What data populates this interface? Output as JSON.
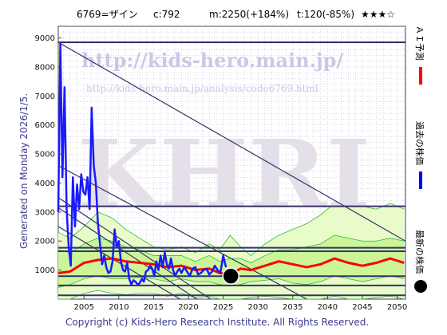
{
  "header": {
    "ticker": "6769=ザイン",
    "current": "c:792",
    "median": "m:2250(+184%)",
    "target": "t:120(-85%)",
    "stars": "★★★☆"
  },
  "watermarks": {
    "url": "http://kids-hero.main.jp/",
    "page_url": "http://kids-hero.main.jp/analysis/code6769.html",
    "logo": "KHRI"
  },
  "side_text": "Generated on Monday 2026/1/5.",
  "copyright": "Copyright (c) Kids-Hero Research Institute. All Rights Reserved.",
  "legend": [
    {
      "label": "ＡＩ予測",
      "color": "#ff0000",
      "shape": "line"
    },
    {
      "label": "過去の株価",
      "color": "#0000ff",
      "shape": "line"
    },
    {
      "label": "最新の株価",
      "color": "#000000",
      "shape": "dot"
    }
  ],
  "colors": {
    "past_price": "#1a1aff",
    "ai_prediction": "#ff0000",
    "band_fill": "#ccf59a",
    "band_line": "#33bb33",
    "trend_line": "#333366",
    "grid": "#b8b8d8"
  },
  "chart_data": {
    "type": "line",
    "xlabel": "",
    "ylabel": "",
    "xlim": [
      2001.3,
      2051.2
    ],
    "ylim": [
      0,
      9400
    ],
    "x_ticks": [
      2005,
      2010,
      2015,
      2020,
      2025,
      2030,
      2035,
      2040,
      2045,
      2050
    ],
    "y_ticks": [
      1000,
      2000,
      3000,
      4000,
      5000,
      6000,
      7000,
      8000,
      9000
    ],
    "grid": true,
    "latest_price": {
      "x": 2026.1,
      "y": 792
    },
    "horizontal_levels": [
      8850,
      3200,
      1770,
      1650,
      790,
      470,
      130
    ],
    "trend_lines": [
      {
        "x": [
          2001.3,
          2051.2
        ],
        "y": [
          8850,
          2000
        ]
      },
      {
        "x": [
          2001.3,
          2037.0
        ],
        "y": [
          4600,
          0
        ]
      },
      {
        "x": [
          2001.3,
          2023.2
        ],
        "y": [
          3500,
          0
        ]
      },
      {
        "x": [
          2001.3,
          2021.2
        ],
        "y": [
          3150,
          0
        ]
      },
      {
        "x": [
          2001.3,
          2018.8
        ],
        "y": [
          2500,
          0
        ]
      }
    ],
    "series": [
      {
        "name": "過去の株価",
        "x": [
          2001.3,
          2001.6,
          2001.9,
          2002.2,
          2002.5,
          2002.8,
          2003.1,
          2003.4,
          2003.7,
          2004.0,
          2004.3,
          2004.6,
          2004.9,
          2005.2,
          2005.5,
          2005.8,
          2006.1,
          2006.4,
          2006.7,
          2007.0,
          2007.3,
          2007.6,
          2007.9,
          2008.2,
          2008.5,
          2008.8,
          2009.1,
          2009.4,
          2009.7,
          2010.0,
          2010.3,
          2010.6,
          2010.9,
          2011.2,
          2011.5,
          2011.8,
          2012.1,
          2012.4,
          2012.7,
          2013.0,
          2013.3,
          2013.6,
          2013.9,
          2014.2,
          2014.5,
          2014.8,
          2015.1,
          2015.4,
          2015.7,
          2016.0,
          2016.3,
          2016.6,
          2016.9,
          2017.2,
          2017.5,
          2017.8,
          2018.1,
          2018.4,
          2018.7,
          2019.0,
          2019.4,
          2019.8,
          2020.2,
          2020.6,
          2021.0,
          2021.4,
          2021.8,
          2022.2,
          2022.6,
          2023.0,
          2023.4,
          2023.8,
          2024.2,
          2024.6,
          2025.0,
          2025.4
        ],
        "y": [
          3000,
          8800,
          4200,
          7300,
          3100,
          1800,
          1150,
          4200,
          2500,
          3950,
          3100,
          4300,
          3700,
          3600,
          4200,
          3100,
          6600,
          4600,
          4000,
          2600,
          1900,
          1200,
          1500,
          1100,
          900,
          950,
          1300,
          2400,
          1800,
          2000,
          1300,
          1000,
          950,
          1250,
          700,
          500,
          650,
          600,
          500,
          550,
          700,
          600,
          950,
          1000,
          1150,
          1050,
          800,
          1300,
          1000,
          1500,
          1100,
          1600,
          1200,
          1050,
          1400,
          1000,
          800,
          950,
          1050,
          900,
          1100,
          950,
          800,
          1050,
          1100,
          850,
          900,
          1000,
          1050,
          850,
          950,
          1150,
          1000,
          900,
          1500,
          1100
        ]
      },
      {
        "name": "ＡＩ予測",
        "x": [
          2001.3,
          2003,
          2005,
          2007,
          2009,
          2011,
          2013,
          2015,
          2017,
          2019,
          2021,
          2023,
          2024.5,
          2026,
          2027.5,
          2029,
          2031,
          2033,
          2035,
          2037,
          2039,
          2041,
          2043,
          2045,
          2047,
          2049,
          2051
        ],
        "y": [
          900,
          950,
          1250,
          1350,
          1400,
          1300,
          1250,
          1200,
          1100,
          1150,
          1000,
          1050,
          900,
          850,
          1050,
          1000,
          1150,
          1300,
          1200,
          1100,
          1200,
          1400,
          1250,
          1150,
          1250,
          1400,
          1250
        ]
      }
    ],
    "bands": {
      "x": [
        2001.3,
        2003,
        2005,
        2007,
        2009,
        2011,
        2013,
        2015,
        2017,
        2019,
        2021,
        2023,
        2024.5,
        2026,
        2027.5,
        2029,
        2031,
        2033,
        2035,
        2037,
        2039,
        2041,
        2043,
        2045,
        2047,
        2049,
        2051
      ],
      "outer_upper": [
        2300,
        2100,
        2500,
        3000,
        2800,
        2400,
        2100,
        1800,
        1700,
        1800,
        1600,
        1900,
        1700,
        2200,
        1800,
        1500,
        1900,
        2200,
        2400,
        2600,
        2900,
        3300,
        3400,
        3200,
        3100,
        3300,
        3100
      ],
      "inner_upper": [
        1700,
        1600,
        1900,
        2100,
        2000,
        1800,
        1700,
        1500,
        1500,
        1500,
        1300,
        1500,
        1300,
        1400,
        1400,
        1250,
        1500,
        1700,
        1700,
        1800,
        1900,
        2200,
        2100,
        2000,
        2000,
        2100,
        2000
      ],
      "inner_lower": [
        400,
        500,
        700,
        800,
        700,
        700,
        750,
        700,
        600,
        700,
        600,
        600,
        500,
        450,
        500,
        600,
        650,
        700,
        550,
        500,
        600,
        800,
        700,
        600,
        700,
        800,
        700
      ],
      "outer_lower": [
        0,
        0,
        200,
        300,
        200,
        150,
        200,
        200,
        100,
        200,
        50,
        100,
        0,
        0,
        0,
        50,
        100,
        50,
        0,
        0,
        0,
        100,
        0,
        0,
        50,
        100,
        0
      ]
    }
  }
}
